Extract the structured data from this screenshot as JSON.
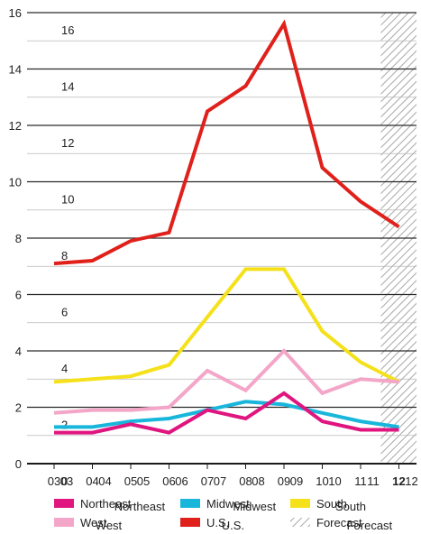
{
  "chart_data": {
    "type": "line",
    "title": "",
    "xlabel": "",
    "ylabel": "",
    "x": [
      "03",
      "04",
      "05",
      "06",
      "07",
      "08",
      "09",
      "10",
      "11",
      "12"
    ],
    "ylim": [
      0,
      16
    ],
    "yticks": [
      0,
      2,
      4,
      6,
      8,
      10,
      12,
      14,
      16
    ],
    "grid": true,
    "legend_position": "bottom",
    "forecast_x": [
      "12"
    ],
    "forecast_label": "Forecast",
    "series": [
      {
        "name": "U.S.",
        "color": "#e0201b",
        "values": [
          7.1,
          7.2,
          7.9,
          8.2,
          12.5,
          13.4,
          15.6,
          10.5,
          9.3,
          8.4
        ]
      },
      {
        "name": "South",
        "color": "#f5e11a",
        "values": [
          2.9,
          3.0,
          3.1,
          3.5,
          5.2,
          6.9,
          6.9,
          4.7,
          3.6,
          2.9
        ]
      },
      {
        "name": "West",
        "color": "#f3a6c8",
        "values": [
          1.8,
          1.9,
          1.9,
          2.0,
          3.3,
          2.6,
          4.0,
          2.5,
          3.0,
          2.9
        ]
      },
      {
        "name": "Midwest",
        "color": "#19b6dc",
        "values": [
          1.3,
          1.3,
          1.5,
          1.6,
          1.9,
          2.2,
          2.1,
          1.8,
          1.5,
          1.3
        ]
      },
      {
        "name": "Northeast",
        "color": "#e0157f",
        "values": [
          1.1,
          1.1,
          1.4,
          1.1,
          1.9,
          1.6,
          2.5,
          1.5,
          1.2,
          1.2
        ]
      }
    ],
    "legend": [
      {
        "name": "Northeast",
        "color": "#e0157f"
      },
      {
        "name": "Midwest",
        "color": "#19b6dc"
      },
      {
        "name": "South",
        "color": "#f5e11a"
      },
      {
        "name": "West",
        "color": "#f3a6c8"
      },
      {
        "name": "U.S.",
        "color": "#e0201b"
      },
      {
        "name": "Forecast",
        "color": "#9e9e9e",
        "hatched": true
      }
    ]
  }
}
